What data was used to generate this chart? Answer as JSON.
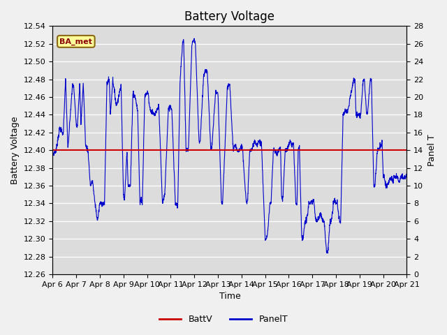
{
  "title": "Battery Voltage",
  "xlabel": "Time",
  "ylabel_left": "Battery Voltage",
  "ylabel_right": "Panel T",
  "annotation_text": "BA_met",
  "left_ylim": [
    12.26,
    12.54
  ],
  "right_ylim": [
    0,
    28
  ],
  "left_yticks": [
    12.26,
    12.28,
    12.3,
    12.32,
    12.34,
    12.36,
    12.38,
    12.4,
    12.42,
    12.44,
    12.46,
    12.48,
    12.5,
    12.52,
    12.54
  ],
  "right_yticks": [
    0,
    2,
    4,
    6,
    8,
    10,
    12,
    14,
    16,
    18,
    20,
    22,
    24,
    26,
    28
  ],
  "xtick_labels": [
    "Apr 6",
    "Apr 7",
    "Apr 8",
    "Apr 9",
    "Apr 10",
    "Apr 11",
    "Apr 12",
    "Apr 13",
    "Apr 14",
    "Apr 15",
    "Apr 16",
    "Apr 17",
    "Apr 18",
    "Apr 19",
    "Apr 20",
    "Apr 21"
  ],
  "battv_value": 12.4,
  "battv_color": "#cc0000",
  "panelt_color": "#0000cc",
  "background_color": "#dcdcdc",
  "legend_battv": "BattV",
  "legend_panelt": "PanelT",
  "grid_color": "#ffffff",
  "title_fontsize": 12,
  "axis_fontsize": 9,
  "tick_fontsize": 8,
  "panelt_keypoints": [
    [
      0.0,
      13.5
    ],
    [
      0.15,
      14.0
    ],
    [
      0.3,
      16.5
    ],
    [
      0.4,
      16.0
    ],
    [
      0.45,
      15.8
    ],
    [
      0.55,
      22.0
    ],
    [
      0.65,
      14.0
    ],
    [
      0.75,
      18.0
    ],
    [
      0.85,
      21.5
    ],
    [
      0.9,
      21.0
    ],
    [
      1.0,
      17.0
    ],
    [
      1.05,
      16.8
    ],
    [
      1.15,
      21.5
    ],
    [
      1.2,
      17.0
    ],
    [
      1.3,
      21.5
    ],
    [
      1.4,
      14.5
    ],
    [
      1.5,
      14.0
    ],
    [
      1.6,
      10.0
    ],
    [
      1.7,
      10.5
    ],
    [
      1.75,
      9.0
    ],
    [
      1.9,
      6.0
    ],
    [
      2.0,
      8.0
    ],
    [
      2.1,
      8.0
    ],
    [
      2.2,
      8.0
    ],
    [
      2.3,
      21.5
    ],
    [
      2.4,
      22.0
    ],
    [
      2.45,
      18.0
    ],
    [
      2.55,
      22.0
    ],
    [
      2.7,
      19.0
    ],
    [
      2.8,
      20.0
    ],
    [
      2.9,
      21.5
    ],
    [
      3.0,
      9.0
    ],
    [
      3.05,
      8.5
    ],
    [
      3.15,
      14.0
    ],
    [
      3.2,
      10.0
    ],
    [
      3.3,
      10.0
    ],
    [
      3.4,
      20.5
    ],
    [
      3.5,
      20.0
    ],
    [
      3.6,
      18.5
    ],
    [
      3.7,
      8.0
    ],
    [
      3.75,
      8.5
    ],
    [
      3.8,
      8.0
    ],
    [
      3.9,
      20.0
    ],
    [
      4.0,
      20.5
    ],
    [
      4.05,
      20.5
    ],
    [
      4.1,
      19.0
    ],
    [
      4.15,
      18.5
    ],
    [
      4.3,
      18.0
    ],
    [
      4.35,
      18.0
    ],
    [
      4.5,
      19.0
    ],
    [
      4.65,
      8.0
    ],
    [
      4.7,
      8.5
    ],
    [
      4.75,
      9.0
    ],
    [
      4.9,
      18.5
    ],
    [
      5.0,
      19.0
    ],
    [
      5.05,
      18.5
    ],
    [
      5.2,
      8.0
    ],
    [
      5.25,
      8.0
    ],
    [
      5.3,
      7.5
    ],
    [
      5.4,
      22.0
    ],
    [
      5.5,
      26.0
    ],
    [
      5.55,
      26.5
    ],
    [
      5.65,
      14.0
    ],
    [
      5.75,
      14.0
    ],
    [
      5.9,
      26.0
    ],
    [
      6.0,
      26.5
    ],
    [
      6.05,
      26.0
    ],
    [
      6.2,
      15.0
    ],
    [
      6.25,
      15.0
    ],
    [
      6.4,
      22.5
    ],
    [
      6.5,
      23.0
    ],
    [
      6.55,
      23.0
    ],
    [
      6.7,
      14.0
    ],
    [
      6.75,
      14.5
    ],
    [
      6.9,
      20.5
    ],
    [
      7.0,
      20.5
    ],
    [
      7.15,
      8.0
    ],
    [
      7.2,
      8.0
    ],
    [
      7.4,
      21.0
    ],
    [
      7.5,
      21.5
    ],
    [
      7.65,
      14.0
    ],
    [
      7.7,
      14.5
    ],
    [
      7.85,
      14.0
    ],
    [
      7.9,
      14.0
    ],
    [
      8.0,
      14.5
    ],
    [
      8.05,
      14.0
    ],
    [
      8.2,
      8.0
    ],
    [
      8.25,
      8.0
    ],
    [
      8.35,
      14.0
    ],
    [
      8.4,
      14.0
    ],
    [
      8.5,
      14.5
    ],
    [
      8.55,
      15.0
    ],
    [
      8.65,
      14.5
    ],
    [
      8.7,
      15.0
    ],
    [
      8.8,
      15.0
    ],
    [
      8.85,
      14.5
    ],
    [
      9.0,
      4.0
    ],
    [
      9.05,
      4.0
    ],
    [
      9.1,
      4.5
    ],
    [
      9.2,
      8.0
    ],
    [
      9.25,
      8.0
    ],
    [
      9.35,
      14.0
    ],
    [
      9.4,
      14.0
    ],
    [
      9.5,
      13.5
    ],
    [
      9.55,
      14.0
    ],
    [
      9.6,
      14.0
    ],
    [
      9.65,
      14.5
    ],
    [
      9.7,
      8.5
    ],
    [
      9.75,
      8.5
    ],
    [
      9.85,
      14.0
    ],
    [
      9.9,
      14.0
    ],
    [
      10.0,
      14.5
    ],
    [
      10.05,
      15.0
    ],
    [
      10.15,
      14.5
    ],
    [
      10.2,
      15.0
    ],
    [
      10.3,
      8.0
    ],
    [
      10.35,
      8.0
    ],
    [
      10.4,
      14.0
    ],
    [
      10.45,
      14.5
    ],
    [
      10.55,
      4.0
    ],
    [
      10.6,
      4.0
    ],
    [
      10.7,
      6.0
    ],
    [
      10.75,
      6.0
    ],
    [
      10.85,
      8.0
    ],
    [
      10.9,
      8.0
    ],
    [
      11.0,
      8.0
    ],
    [
      11.05,
      8.5
    ],
    [
      11.15,
      6.0
    ],
    [
      11.2,
      6.0
    ],
    [
      11.3,
      6.5
    ],
    [
      11.35,
      7.0
    ],
    [
      11.45,
      6.0
    ],
    [
      11.5,
      6.0
    ],
    [
      11.6,
      2.5
    ],
    [
      11.65,
      2.5
    ],
    [
      11.75,
      6.0
    ],
    [
      11.8,
      6.0
    ],
    [
      11.9,
      8.0
    ],
    [
      11.95,
      8.5
    ],
    [
      12.0,
      8.0
    ],
    [
      12.05,
      8.0
    ],
    [
      12.15,
      6.0
    ],
    [
      12.2,
      6.0
    ],
    [
      12.3,
      18.0
    ],
    [
      12.4,
      18.5
    ],
    [
      12.5,
      18.5
    ],
    [
      12.55,
      19.0
    ],
    [
      12.6,
      20.0
    ],
    [
      12.65,
      20.5
    ],
    [
      12.75,
      22.0
    ],
    [
      12.8,
      22.0
    ],
    [
      12.85,
      18.0
    ],
    [
      12.9,
      18.0
    ],
    [
      13.0,
      18.0
    ],
    [
      13.05,
      18.0
    ],
    [
      13.15,
      22.0
    ],
    [
      13.2,
      22.0
    ],
    [
      13.3,
      18.0
    ],
    [
      13.35,
      18.5
    ],
    [
      13.45,
      22.0
    ],
    [
      13.5,
      22.0
    ],
    [
      13.6,
      10.0
    ],
    [
      13.65,
      10.0
    ],
    [
      13.75,
      14.0
    ],
    [
      13.8,
      14.0
    ],
    [
      13.9,
      14.5
    ],
    [
      13.95,
      15.0
    ],
    [
      14.0,
      11.0
    ],
    [
      14.05,
      11.0
    ],
    [
      14.1,
      10.0
    ],
    [
      14.15,
      10.0
    ],
    [
      14.25,
      10.5
    ],
    [
      14.3,
      11.0
    ],
    [
      14.4,
      10.5
    ],
    [
      14.45,
      11.0
    ],
    [
      14.55,
      11.0
    ],
    [
      14.6,
      11.0
    ],
    [
      14.65,
      10.5
    ],
    [
      14.7,
      10.5
    ],
    [
      14.75,
      11.0
    ],
    [
      14.8,
      11.0
    ],
    [
      14.85,
      11.0
    ],
    [
      14.9,
      11.0
    ],
    [
      15.0,
      11.0
    ]
  ]
}
